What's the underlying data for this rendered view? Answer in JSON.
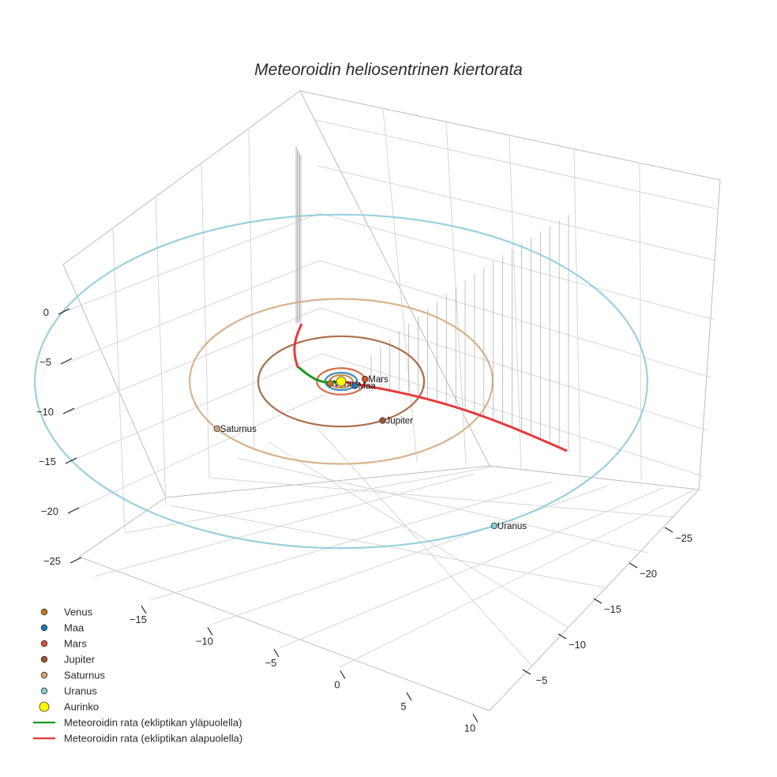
{
  "chart_data": {
    "type": "line",
    "title": "Meteoroidin heliosentrinen kiertorata",
    "x_ticks": [
      "−15",
      "−10",
      "−5",
      "0",
      "5",
      "10"
    ],
    "y_ticks": [
      "−25",
      "−20",
      "−15",
      "−10",
      "−5"
    ],
    "z_ticks": [
      "0",
      "−5",
      "−10",
      "−15",
      "−20",
      "−25"
    ],
    "bodies": [
      {
        "name": "Venus",
        "label": "Venus",
        "color": "#c4781c",
        "orbit_radius": 0.72,
        "angle_deg": 200
      },
      {
        "name": "Maa",
        "label": "Maa",
        "color": "#1f77b4",
        "orbit_radius": 1.0,
        "angle_deg": 330
      },
      {
        "name": "Mars",
        "label": "Mars",
        "color": "#d2522a",
        "orbit_radius": 1.52,
        "angle_deg": 10
      },
      {
        "name": "Jupiter",
        "label": "Jupiter",
        "color": "#a0522d",
        "orbit_radius": 5.2,
        "angle_deg": 300
      },
      {
        "name": "Saturnus",
        "label": "Saturnus",
        "color": "#d2a679",
        "orbit_radius": 9.5,
        "angle_deg": 215
      },
      {
        "name": "Uranus",
        "label": "Uranus",
        "color": "#89c9d9",
        "orbit_radius": 19.2,
        "angle_deg": 300
      },
      {
        "name": "Aurinko",
        "label": "",
        "color": "#ffff00",
        "orbit_radius": 0,
        "angle_deg": 0
      }
    ],
    "trajectory_colors": {
      "above": "#1a9a1a",
      "below": "#e8393a"
    },
    "legend": [
      {
        "label": "Venus",
        "color": "#c4781c",
        "kind": "marker"
      },
      {
        "label": "Maa",
        "color": "#1f77b4",
        "kind": "marker"
      },
      {
        "label": "Mars",
        "color": "#d2522a",
        "kind": "marker"
      },
      {
        "label": "Jupiter",
        "color": "#a0522d",
        "kind": "marker"
      },
      {
        "label": "Saturnus",
        "color": "#d2a679",
        "kind": "marker"
      },
      {
        "label": "Uranus",
        "color": "#89c9d9",
        "kind": "marker"
      },
      {
        "label": "Aurinko",
        "color": "#ffff00",
        "kind": "bigmarker"
      },
      {
        "label": "Meteoroidin rata (ekliptikan yläpuolella)",
        "color": "#1a9a1a",
        "kind": "line"
      },
      {
        "label": "Meteoroidin rata (ekliptikan alapuolella)",
        "color": "#e8393a",
        "kind": "line"
      }
    ]
  }
}
